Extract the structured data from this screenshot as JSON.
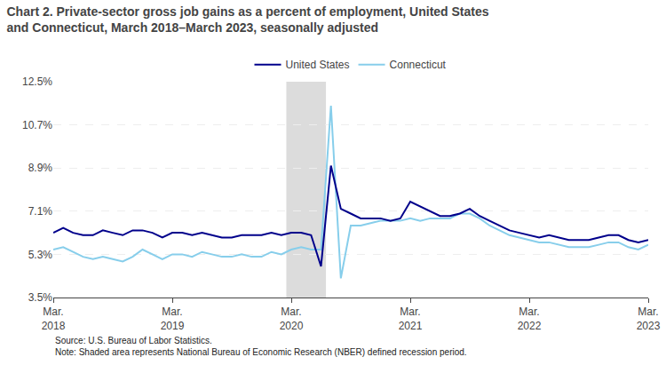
{
  "chart_data": {
    "type": "line",
    "title": "Chart 2. Private-sector gross job gains as a percent of employment, United States\nand Connecticut, March 2018–March 2023, seasonally adjusted",
    "annotations": [
      "Source: U.S. Bureau of Labor Statistics.\nNote: Shaded area represents National Bureau of Economic Research (NBER) defined recession period."
    ],
    "categories": [
      "Mar.\n2018",
      null,
      null,
      null,
      null,
      null,
      null,
      null,
      null,
      null,
      null,
      null,
      "Mar.\n2019",
      null,
      null,
      null,
      null,
      null,
      null,
      null,
      null,
      null,
      null,
      null,
      "Mar.\n2020",
      null,
      null,
      null,
      null,
      null,
      null,
      null,
      null,
      null,
      null,
      null,
      "Mar.\n2021",
      null,
      null,
      null,
      null,
      null,
      null,
      null,
      null,
      null,
      null,
      null,
      "Mar.\n2022",
      null,
      null,
      null,
      null,
      null,
      null,
      null,
      null,
      null,
      null,
      null,
      "Mar.\n2023"
    ],
    "series": [
      {
        "name": "United States",
        "color": "#00008B",
        "values": [
          6.2,
          6.4,
          6.2,
          6.1,
          6.1,
          6.3,
          6.2,
          6.1,
          6.3,
          6.3,
          6.2,
          6.0,
          6.2,
          6.2,
          6.1,
          6.2,
          6.1,
          6.0,
          6.0,
          6.1,
          6.1,
          6.1,
          6.2,
          6.1,
          6.2,
          6.2,
          6.1,
          4.8,
          9.0,
          7.2,
          7.0,
          6.8,
          6.8,
          6.8,
          6.7,
          6.8,
          7.5,
          7.3,
          7.1,
          6.9,
          6.9,
          7.0,
          7.2,
          6.9,
          6.7,
          6.5,
          6.3,
          6.2,
          6.1,
          6.0,
          6.1,
          6.0,
          5.9,
          5.9,
          5.9,
          6.0,
          6.1,
          6.1,
          5.9,
          5.8,
          5.9
        ]
      },
      {
        "name": "Connecticut",
        "color": "#87CEEB",
        "values": [
          5.5,
          5.6,
          5.4,
          5.2,
          5.1,
          5.2,
          5.1,
          5.0,
          5.2,
          5.5,
          5.3,
          5.1,
          5.3,
          5.3,
          5.2,
          5.4,
          5.3,
          5.2,
          5.2,
          5.3,
          5.2,
          5.2,
          5.4,
          5.3,
          5.5,
          5.6,
          5.5,
          5.5,
          11.5,
          4.3,
          6.5,
          6.5,
          6.6,
          6.7,
          6.7,
          6.7,
          6.8,
          6.7,
          6.8,
          6.8,
          6.8,
          7.0,
          7.0,
          6.8,
          6.5,
          6.3,
          6.1,
          6.0,
          5.9,
          5.8,
          5.8,
          5.7,
          5.6,
          5.6,
          5.6,
          5.7,
          5.8,
          5.8,
          5.6,
          5.5,
          5.7
        ]
      }
    ],
    "recession": {
      "start": 24,
      "end": 27,
      "color": "#dcdcdc"
    },
    "ylim": [
      3.5,
      12.5
    ],
    "yticks": [
      {
        "value": 3.5,
        "label": "3.5%"
      },
      {
        "value": 5.3,
        "label": "5.3%"
      },
      {
        "value": 7.1,
        "label": "7.1%"
      },
      {
        "value": 8.9,
        "label": "8.9%"
      },
      {
        "value": 10.7,
        "label": "10.7%"
      },
      {
        "value": 12.5,
        "label": "12.5%"
      }
    ],
    "grid": true,
    "legend": "top"
  }
}
